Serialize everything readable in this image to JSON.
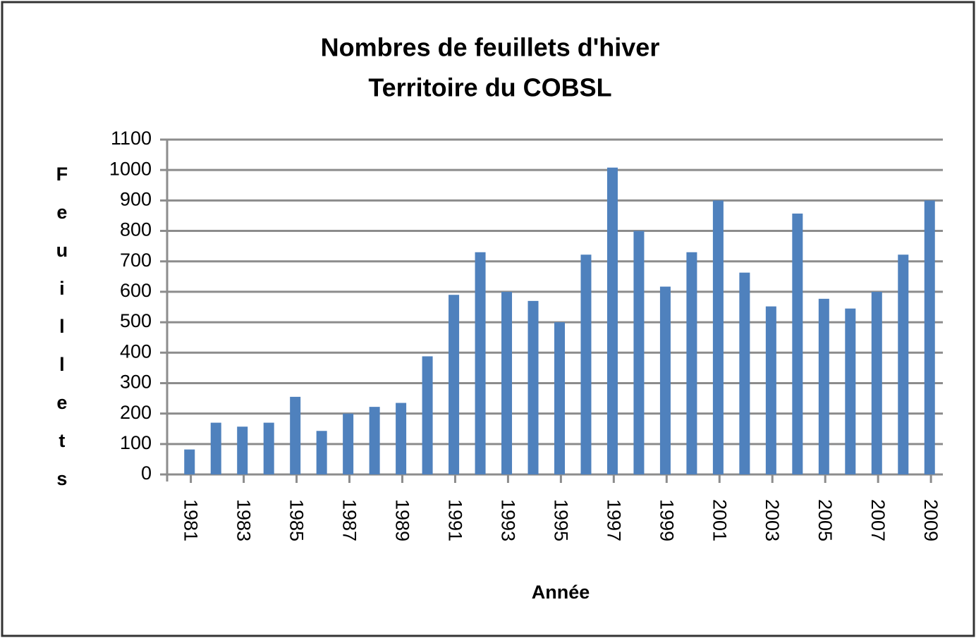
{
  "chart_data": {
    "type": "bar",
    "title": "Nombres de feuillets d'hiver",
    "subtitle": "Territoire du COBSL",
    "x_label": "Année",
    "y_label": "Feuillets",
    "categories": [
      "1981",
      null,
      "1983",
      null,
      "1985",
      null,
      "1987",
      null,
      "1989",
      null,
      "1991",
      null,
      "1993",
      null,
      "1995",
      null,
      "1997",
      null,
      "1999",
      null,
      "2001",
      null,
      "2003",
      null,
      "2005",
      null,
      "2007",
      null,
      "2009"
    ],
    "values": [
      82,
      170,
      157,
      170,
      255,
      143,
      200,
      222,
      235,
      388,
      590,
      730,
      600,
      570,
      500,
      722,
      1008,
      800,
      617,
      730,
      900,
      663,
      552,
      857,
      577,
      545,
      600,
      722,
      900
    ],
    "color": "#4f81bd",
    "ylim": [
      0,
      1100
    ],
    "yticks": [
      0,
      100,
      200,
      300,
      400,
      500,
      600,
      700,
      800,
      900,
      1000,
      1100
    ],
    "grid": true
  }
}
